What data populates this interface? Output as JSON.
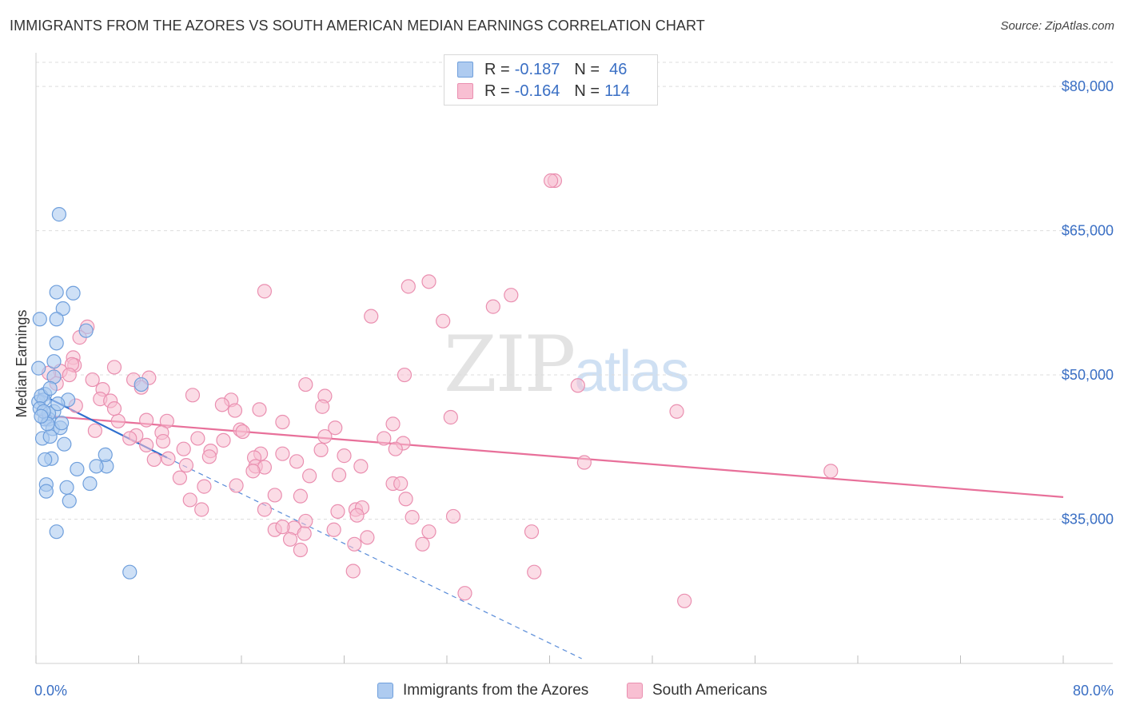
{
  "title": "IMMIGRANTS FROM THE AZORES VS SOUTH AMERICAN MEDIAN EARNINGS CORRELATION CHART",
  "source": "Source: ZipAtlas.com",
  "watermark": {
    "zip": "ZIP",
    "atlas": "atlas"
  },
  "legend": {
    "series1": {
      "r_label": "R =",
      "r_value": "-0.187",
      "n_label": "N =",
      "n_value": "46"
    },
    "series2": {
      "r_label": "R =",
      "r_value": "-0.164",
      "n_label": "N =",
      "n_value": "114"
    }
  },
  "bottom_legend": {
    "series1": "Immigrants from the Azores",
    "series2": "South Americans"
  },
  "colors": {
    "series1_fill": "#aecbf0",
    "series1_stroke": "#6f9fdc",
    "series1_line": "#2f6fcf",
    "series2_fill": "#f8bfd2",
    "series2_stroke": "#ea8fb0",
    "series2_line": "#e8709a",
    "grid": "#dddddd",
    "tick_label": "#3a6fc4"
  },
  "chart_data": {
    "type": "scatter",
    "title": "IMMIGRANTS FROM THE AZORES VS SOUTH AMERICAN MEDIAN EARNINGS CORRELATION CHART",
    "xlabel": "",
    "ylabel": "Median Earnings",
    "xlim": [
      0,
      80
    ],
    "ylim": [
      20000,
      83000
    ],
    "x_tick_labels": {
      "left": "0.0%",
      "right": "80.0%"
    },
    "y_ticks": [
      {
        "value": 35000,
        "label": "$35,000"
      },
      {
        "value": 50000,
        "label": "$50,000"
      },
      {
        "value": 65000,
        "label": "$65,000"
      },
      {
        "value": 80000,
        "label": "$80,000"
      }
    ],
    "grid": true,
    "legend_position": "top-center",
    "series": [
      {
        "name": "Immigrants from the Azores",
        "R": -0.187,
        "N": 46,
        "trend": {
          "x0": 0.2,
          "y0": 48100,
          "x1": 10.2,
          "y1": 41400,
          "solid_until": 10.2,
          "dashed_to": [
            42.5,
            20500
          ]
        },
        "points": [
          [
            1.8,
            66700
          ],
          [
            0.3,
            55800
          ],
          [
            1.6,
            58600
          ],
          [
            2.9,
            58500
          ],
          [
            2.1,
            56900
          ],
          [
            3.9,
            54600
          ],
          [
            1.6,
            55800
          ],
          [
            1.6,
            53300
          ],
          [
            0.2,
            50700
          ],
          [
            1.4,
            51400
          ],
          [
            1.4,
            49800
          ],
          [
            8.2,
            49000
          ],
          [
            0.7,
            48000
          ],
          [
            0.2,
            47200
          ],
          [
            0.6,
            47400
          ],
          [
            2.5,
            47400
          ],
          [
            1.4,
            46200
          ],
          [
            1.0,
            45400
          ],
          [
            0.7,
            45400
          ],
          [
            1.3,
            44400
          ],
          [
            1.9,
            44500
          ],
          [
            0.5,
            43400
          ],
          [
            1.1,
            43600
          ],
          [
            2.2,
            42800
          ],
          [
            1.2,
            41300
          ],
          [
            0.7,
            41200
          ],
          [
            5.5,
            40500
          ],
          [
            4.7,
            40500
          ],
          [
            3.2,
            40200
          ],
          [
            5.4,
            41700
          ],
          [
            0.8,
            38600
          ],
          [
            2.4,
            38300
          ],
          [
            4.2,
            38700
          ],
          [
            0.8,
            37900
          ],
          [
            2.6,
            36900
          ],
          [
            1.6,
            33700
          ],
          [
            7.3,
            29500
          ],
          [
            0.4,
            47800
          ],
          [
            0.3,
            46500
          ],
          [
            1.0,
            46000
          ],
          [
            0.6,
            46200
          ],
          [
            2.0,
            45000
          ],
          [
            0.9,
            44900
          ],
          [
            0.4,
            45700
          ],
          [
            1.7,
            47000
          ],
          [
            1.1,
            48600
          ]
        ]
      },
      {
        "name": "South Americans",
        "R": -0.164,
        "N": 114,
        "trend": {
          "x0": 0.2,
          "y0": 45800,
          "x1": 80.0,
          "y1": 37300
        },
        "points": [
          [
            40.4,
            70200
          ],
          [
            40.1,
            70200
          ],
          [
            30.6,
            59700
          ],
          [
            29.0,
            59200
          ],
          [
            17.8,
            58700
          ],
          [
            37.0,
            58300
          ],
          [
            35.6,
            57100
          ],
          [
            26.1,
            56100
          ],
          [
            31.7,
            55600
          ],
          [
            4.0,
            55000
          ],
          [
            3.4,
            53900
          ],
          [
            2.9,
            51800
          ],
          [
            3.0,
            51000
          ],
          [
            6.1,
            50800
          ],
          [
            2.8,
            51100
          ],
          [
            1.9,
            50400
          ],
          [
            7.6,
            49500
          ],
          [
            8.8,
            49700
          ],
          [
            2.6,
            50000
          ],
          [
            1.0,
            50200
          ],
          [
            1.6,
            49100
          ],
          [
            4.4,
            49500
          ],
          [
            8.2,
            48700
          ],
          [
            28.7,
            50000
          ],
          [
            5.2,
            48500
          ],
          [
            12.2,
            47900
          ],
          [
            22.5,
            47800
          ],
          [
            5.0,
            47500
          ],
          [
            15.2,
            47400
          ],
          [
            5.8,
            47300
          ],
          [
            21.0,
            49000
          ],
          [
            14.5,
            46900
          ],
          [
            22.3,
            46700
          ],
          [
            15.5,
            46300
          ],
          [
            17.4,
            46400
          ],
          [
            32.3,
            45600
          ],
          [
            42.2,
            48900
          ],
          [
            49.9,
            46200
          ],
          [
            6.4,
            45200
          ],
          [
            8.6,
            45300
          ],
          [
            10.2,
            45200
          ],
          [
            19.2,
            45100
          ],
          [
            27.8,
            44900
          ],
          [
            23.3,
            44500
          ],
          [
            15.9,
            44300
          ],
          [
            4.6,
            44200
          ],
          [
            9.8,
            44000
          ],
          [
            16.1,
            44100
          ],
          [
            7.8,
            43700
          ],
          [
            12.6,
            43400
          ],
          [
            22.5,
            43600
          ],
          [
            27.1,
            43400
          ],
          [
            7.3,
            43400
          ],
          [
            14.6,
            43200
          ],
          [
            28.6,
            42900
          ],
          [
            8.6,
            42700
          ],
          [
            11.5,
            42300
          ],
          [
            13.6,
            42100
          ],
          [
            22.2,
            42200
          ],
          [
            28.0,
            42300
          ],
          [
            17.5,
            41800
          ],
          [
            19.2,
            41800
          ],
          [
            24.0,
            41600
          ],
          [
            10.3,
            41300
          ],
          [
            13.5,
            41500
          ],
          [
            9.2,
            41200
          ],
          [
            17.0,
            41400
          ],
          [
            20.3,
            41000
          ],
          [
            17.1,
            40500
          ],
          [
            11.7,
            40600
          ],
          [
            17.8,
            40400
          ],
          [
            25.3,
            40500
          ],
          [
            16.9,
            40000
          ],
          [
            21.3,
            39500
          ],
          [
            11.2,
            39300
          ],
          [
            23.6,
            39600
          ],
          [
            42.7,
            40900
          ],
          [
            61.9,
            40000
          ],
          [
            27.8,
            38700
          ],
          [
            28.4,
            38700
          ],
          [
            13.1,
            38400
          ],
          [
            15.6,
            38500
          ],
          [
            12.0,
            37000
          ],
          [
            18.6,
            37500
          ],
          [
            20.6,
            37400
          ],
          [
            28.8,
            37100
          ],
          [
            12.9,
            36000
          ],
          [
            17.8,
            36000
          ],
          [
            23.5,
            35800
          ],
          [
            24.9,
            36000
          ],
          [
            25.4,
            36200
          ],
          [
            25.0,
            35400
          ],
          [
            29.3,
            35200
          ],
          [
            32.5,
            35300
          ],
          [
            21.0,
            34800
          ],
          [
            18.6,
            33900
          ],
          [
            20.1,
            34100
          ],
          [
            19.2,
            34200
          ],
          [
            20.9,
            33500
          ],
          [
            23.2,
            33900
          ],
          [
            30.6,
            33700
          ],
          [
            38.6,
            33700
          ],
          [
            25.8,
            33100
          ],
          [
            24.8,
            32400
          ],
          [
            30.1,
            32400
          ],
          [
            20.6,
            31800
          ],
          [
            24.7,
            29600
          ],
          [
            38.8,
            29500
          ],
          [
            33.4,
            27300
          ],
          [
            50.5,
            26500
          ],
          [
            19.8,
            32900
          ],
          [
            9.9,
            43100
          ],
          [
            6.1,
            46500
          ],
          [
            3.1,
            46800
          ]
        ]
      }
    ]
  }
}
